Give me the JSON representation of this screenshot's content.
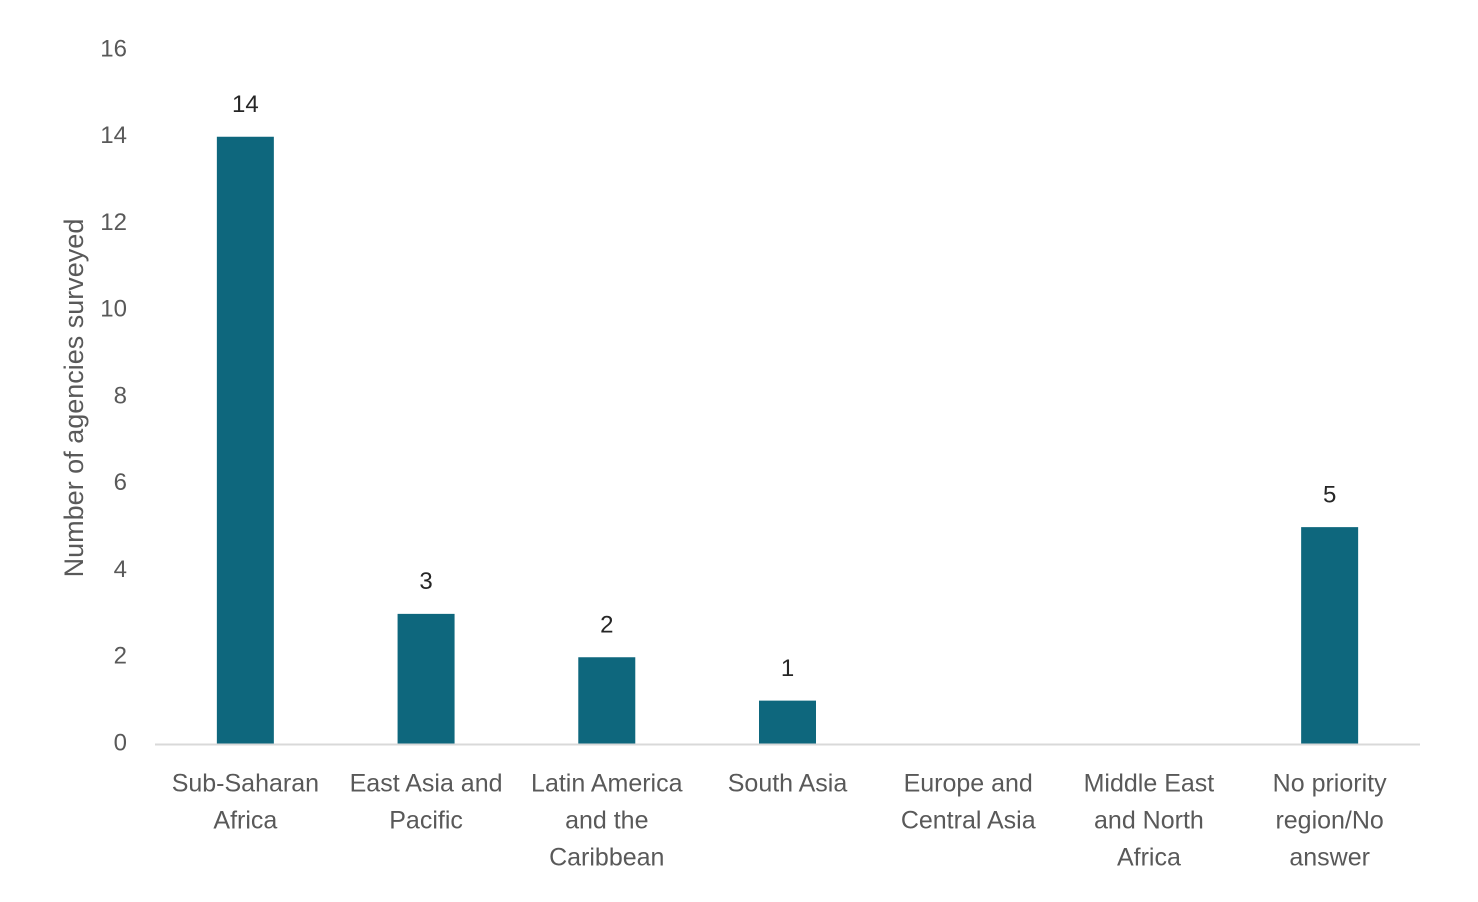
{
  "chart_data": {
    "type": "bar",
    "categories": [
      [
        "Sub-Saharan",
        "Africa"
      ],
      [
        "East Asia and",
        "Pacific"
      ],
      [
        "Latin America",
        "and the",
        "Caribbean"
      ],
      [
        "South Asia"
      ],
      [
        "Europe and",
        "Central Asia"
      ],
      [
        "Middle East",
        "and North",
        "Africa"
      ],
      [
        "No priority",
        "region/No",
        "answer"
      ]
    ],
    "values": [
      14,
      3,
      2,
      1,
      null,
      null,
      5
    ],
    "data_labels": [
      "14",
      "3",
      "2",
      "1",
      "",
      "",
      "5"
    ],
    "xlabel": "",
    "ylabel": "Number of agencies surveyed",
    "ylim": [
      0,
      16
    ],
    "yticks": [
      0,
      2,
      4,
      6,
      8,
      10,
      12,
      14,
      16
    ],
    "grid": false,
    "legend": "none",
    "colors": {
      "bar": "#0e677d",
      "axis": "#d9d9d9",
      "text": "#595959",
      "label": "#262626"
    }
  }
}
